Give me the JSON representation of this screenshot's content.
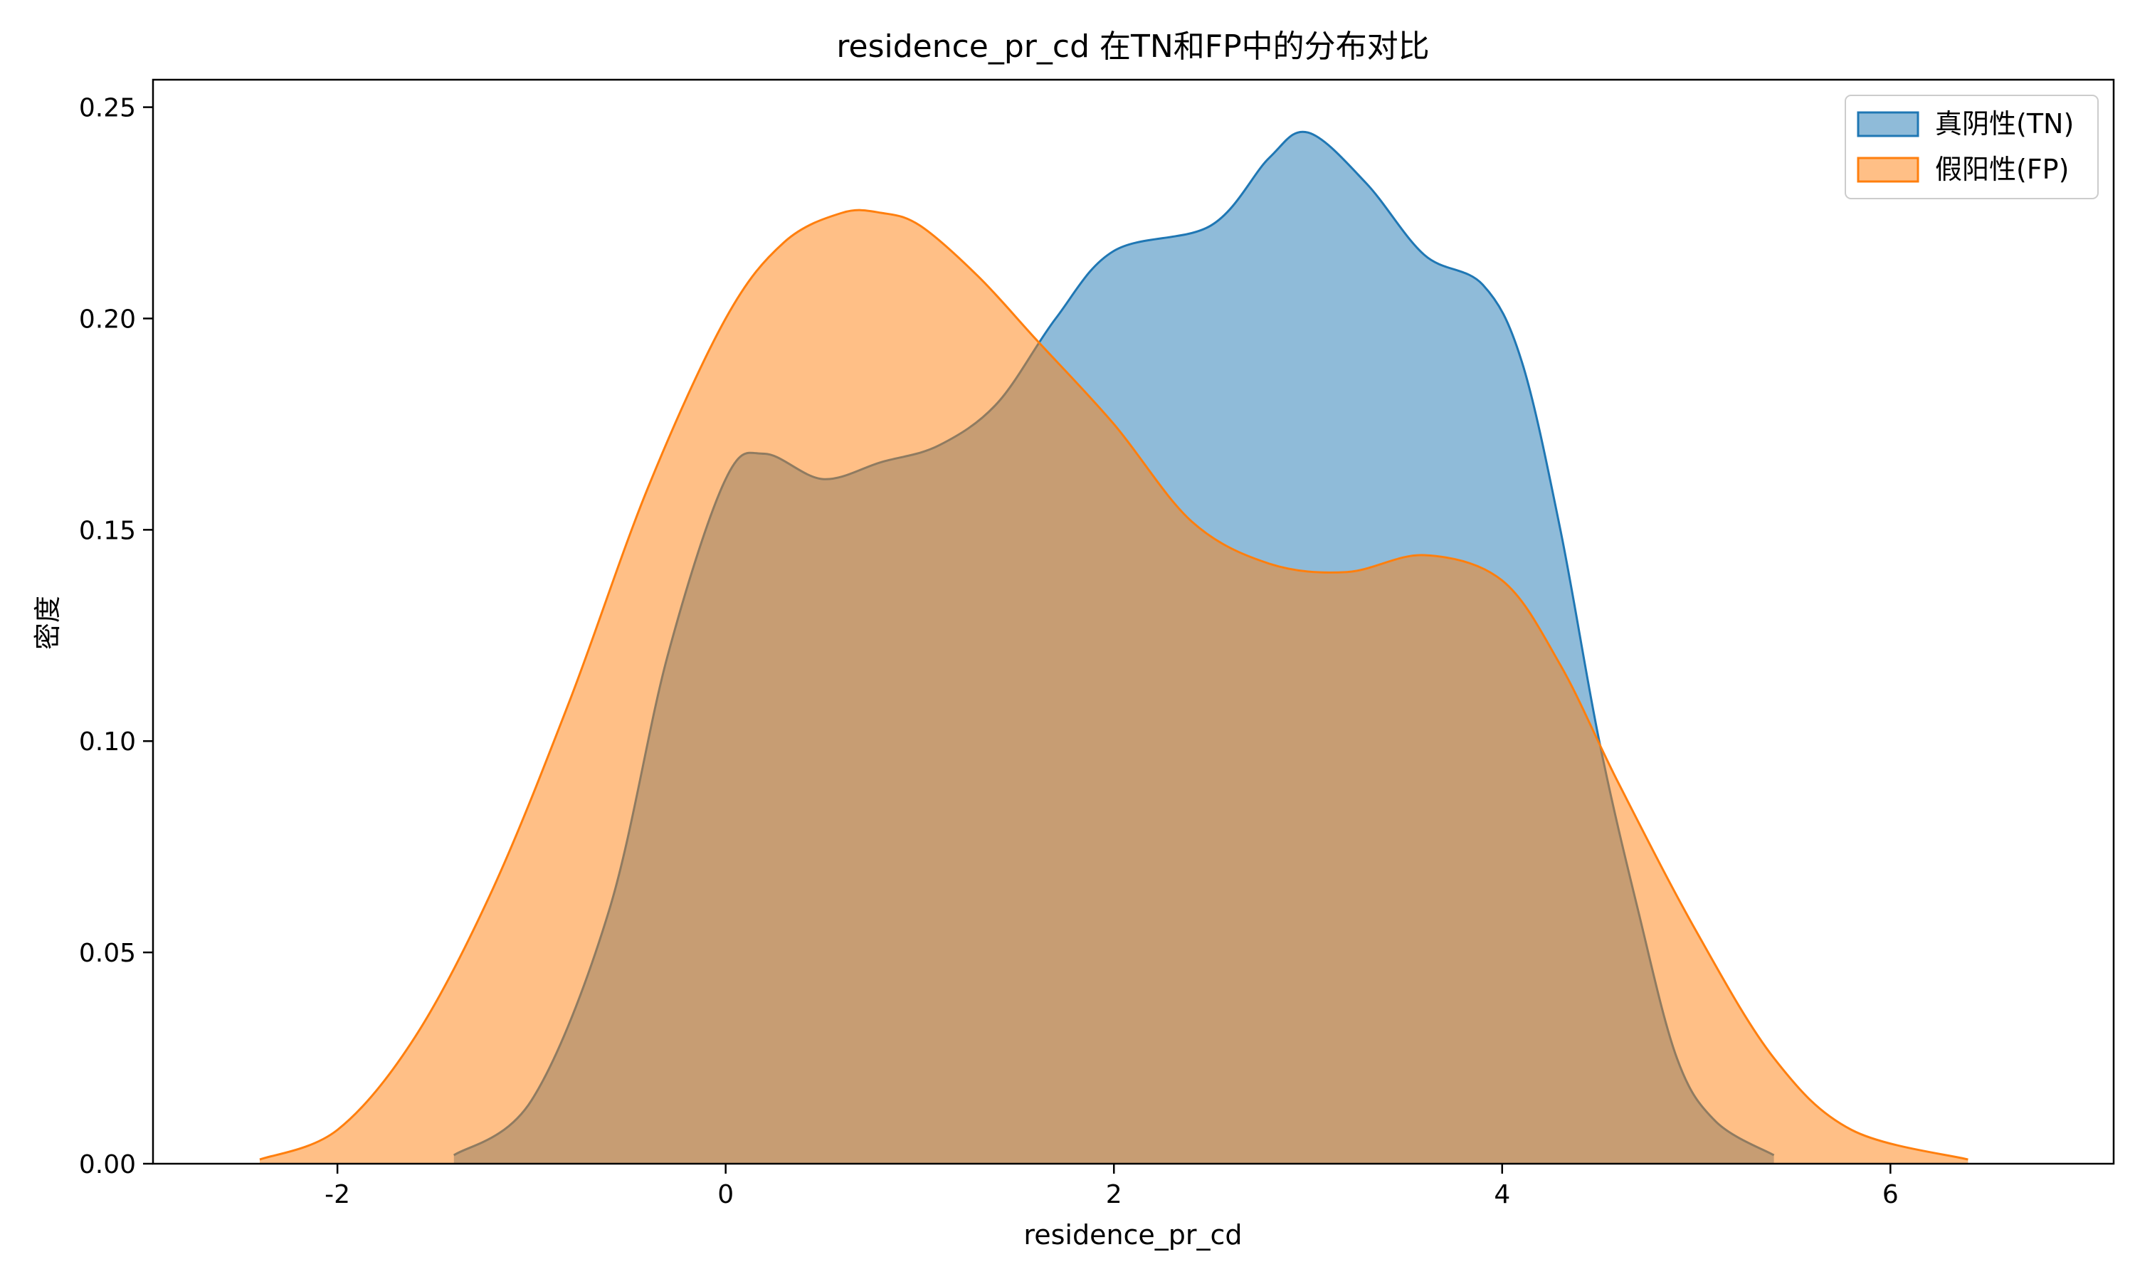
{
  "chart_data": {
    "type": "area",
    "title": "residence_pr_cd 在TN和FP中的分布对比",
    "xlabel": "residence_pr_cd",
    "ylabel": "密度",
    "xlim": [
      -2.95,
      7.15
    ],
    "ylim": [
      0,
      0.2565
    ],
    "x_ticks": [
      -2,
      0,
      2,
      4,
      6
    ],
    "x_tick_labels": [
      "-2",
      "0",
      "2",
      "4",
      "6"
    ],
    "y_ticks": [
      0,
      0.05,
      0.1,
      0.15,
      0.2,
      0.25
    ],
    "y_tick_labels": [
      "0.00",
      "0.05",
      "0.10",
      "0.15",
      "0.20",
      "0.25"
    ],
    "grid": false,
    "legend_position": "top-right",
    "series": [
      {
        "name": "真阴性(TN)",
        "color": "#1f77b4",
        "fill": "#1f77b4",
        "fill_opacity": 0.5,
        "x": [
          -1.4,
          -1.0,
          -0.6,
          -0.3,
          0.0,
          0.2,
          0.5,
          0.8,
          1.1,
          1.4,
          1.7,
          2.0,
          2.5,
          2.8,
          3.0,
          3.3,
          3.6,
          3.9,
          4.1,
          4.3,
          4.5,
          4.7,
          4.9,
          5.1,
          5.4
        ],
        "y": [
          0.002,
          0.015,
          0.06,
          0.12,
          0.162,
          0.168,
          0.162,
          0.166,
          0.17,
          0.18,
          0.2,
          0.216,
          0.222,
          0.238,
          0.244,
          0.232,
          0.215,
          0.208,
          0.19,
          0.15,
          0.1,
          0.06,
          0.025,
          0.01,
          0.002
        ]
      },
      {
        "name": "假阳性(FP)",
        "color": "#ff7f0e",
        "fill": "#ff7f0e",
        "fill_opacity": 0.5,
        "x": [
          -2.4,
          -2.0,
          -1.6,
          -1.2,
          -0.8,
          -0.4,
          0.0,
          0.3,
          0.6,
          0.8,
          1.0,
          1.3,
          1.6,
          2.0,
          2.4,
          2.8,
          3.2,
          3.6,
          4.0,
          4.3,
          4.6,
          5.0,
          5.4,
          5.8,
          6.4
        ],
        "y": [
          0.001,
          0.008,
          0.03,
          0.065,
          0.11,
          0.16,
          0.2,
          0.218,
          0.225,
          0.225,
          0.222,
          0.21,
          0.195,
          0.175,
          0.152,
          0.142,
          0.14,
          0.144,
          0.138,
          0.118,
          0.09,
          0.055,
          0.025,
          0.008,
          0.001
        ]
      }
    ]
  }
}
